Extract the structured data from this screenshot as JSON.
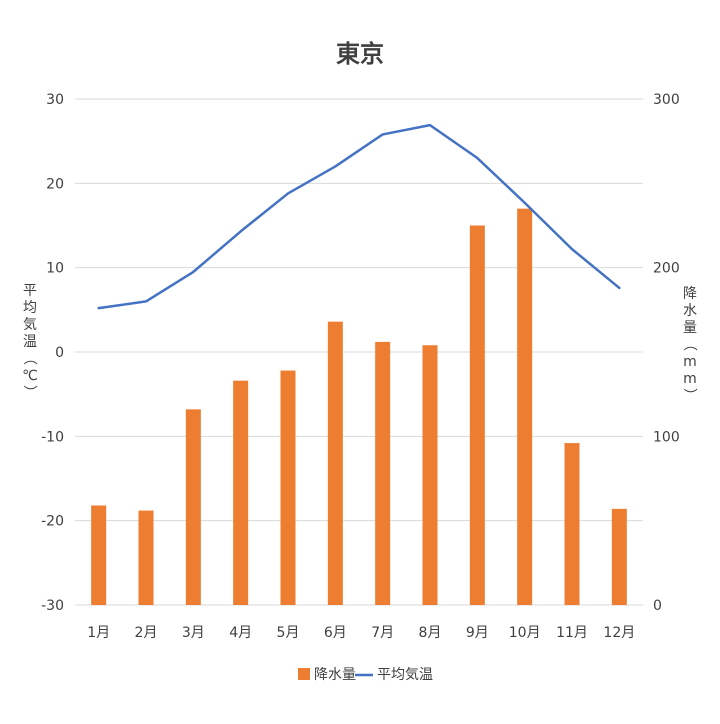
{
  "chart_data": {
    "type": "bar",
    "title": "東京",
    "categories": [
      "1月",
      "2月",
      "3月",
      "4月",
      "5月",
      "6月",
      "7月",
      "8月",
      "9月",
      "10月",
      "11月",
      "12月"
    ],
    "series": [
      {
        "name": "降水量",
        "type": "bar",
        "axis": "right",
        "color": "#ED7D31",
        "values": [
          59,
          56,
          116,
          133,
          139,
          168,
          156,
          154,
          225,
          235,
          96,
          57
        ]
      },
      {
        "name": "平均気温",
        "type": "line",
        "axis": "left",
        "color": "#4472C4",
        "values": [
          5.2,
          6.0,
          9.5,
          14.3,
          18.8,
          22.0,
          25.8,
          26.9,
          23.0,
          17.7,
          12.2,
          7.6
        ]
      }
    ],
    "ylabel_left": "平均気温（℃）",
    "ylabel_right": "降水量（mm）",
    "ylim_left": [
      -30,
      30
    ],
    "ylim_right": [
      0,
      300
    ],
    "yticks_left": [
      "30",
      "20",
      "10",
      "0",
      "-10",
      "-20",
      "-30"
    ],
    "yticks_right": [
      "300",
      "200",
      "100",
      "0"
    ],
    "grid": true,
    "legend_position": "bottom"
  }
}
